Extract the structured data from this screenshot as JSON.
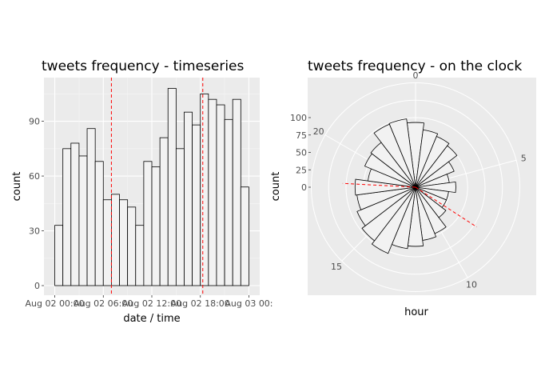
{
  "chart_data": [
    {
      "type": "bar",
      "title": "tweets frequency - timeseries",
      "xlabel": "date / time",
      "ylabel": "count",
      "x_ticks": [
        "Aug 02 00:00",
        "Aug 02 06:00",
        "Aug 02 12:00",
        "Aug 02 18:00",
        "Aug 03 00:"
      ],
      "y_ticks": [
        0,
        30,
        60,
        90
      ],
      "ylim": [
        0,
        114
      ],
      "bin_width_hours": 1,
      "values": [
        33,
        75,
        78,
        71,
        86,
        68,
        47,
        50,
        47,
        43,
        33,
        68,
        65,
        81,
        108,
        75,
        95,
        88,
        105,
        102,
        99,
        91,
        102,
        54
      ],
      "vlines_hours": [
        7,
        18.3
      ],
      "vline_color": "#ff0000",
      "bar_fill": "#f2f2f2",
      "panel_bg": "#ebebeb",
      "grid": true
    },
    {
      "type": "bar",
      "polar": true,
      "title": "tweets frequency - on the clock",
      "xlabel": "hour",
      "ylabel": "count",
      "theta_ticks": [
        0,
        5,
        10,
        15,
        20
      ],
      "r_ticks": [
        0,
        25,
        50,
        75,
        100
      ],
      "ylim": [
        -25,
        125
      ],
      "hours": [
        0,
        1,
        2,
        3,
        4,
        5,
        6,
        7,
        8,
        9,
        10,
        11,
        12,
        13,
        14,
        15,
        16,
        17,
        18,
        19,
        20,
        21,
        22,
        23
      ],
      "values": [
        68,
        58,
        54,
        50,
        35,
        24,
        33,
        23,
        23,
        30,
        47,
        52,
        60,
        64,
        78,
        72,
        66,
        60,
        62,
        44,
        54,
        56,
        73,
        74
      ],
      "clock_hands_hours": [
        8.2,
        18.2
      ],
      "hand_color": "#ff0000",
      "bar_fill": "#f2f2f2",
      "panel_bg": "#ebebeb",
      "grid": true
    }
  ]
}
